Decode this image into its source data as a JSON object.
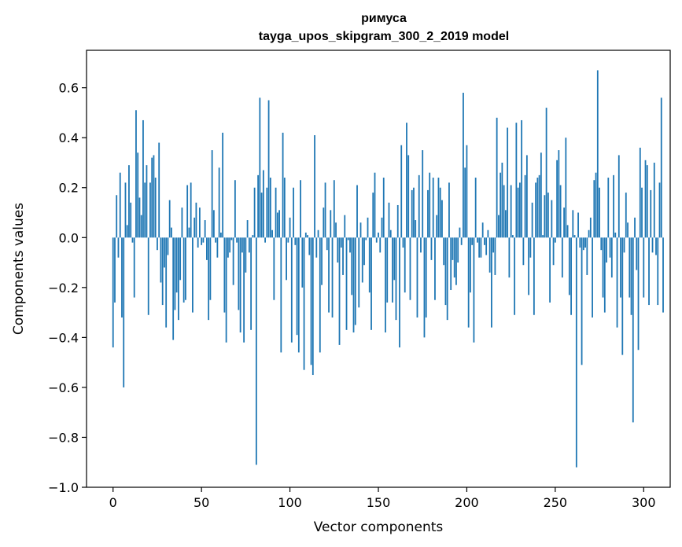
{
  "chart_data": {
    "type": "bar",
    "title": "римуса",
    "subtitle": "tayga_upos_skipgram_300_2_2019 model",
    "xlabel": "Vector components",
    "ylabel": "Components values",
    "xlim": [
      -15,
      315
    ],
    "ylim": [
      -1.0,
      0.75
    ],
    "xticks": [
      0,
      50,
      100,
      150,
      200,
      250,
      300
    ],
    "yticks": [
      -1.0,
      -0.8,
      -0.6,
      -0.4,
      -0.2,
      0.0,
      0.2,
      0.4,
      0.6
    ],
    "ytick_labels": [
      "−1.0",
      "−0.8",
      "−0.6",
      "−0.4",
      "−0.2",
      "0.0",
      "0.2",
      "0.4",
      "0.6"
    ],
    "xtick_labels": [
      "0",
      "50",
      "100",
      "150",
      "200",
      "250",
      "300"
    ],
    "bar_color": "#1f77b4",
    "grid": false,
    "x_start": 0,
    "values": [
      -0.44,
      -0.26,
      0.17,
      -0.08,
      0.26,
      -0.32,
      -0.6,
      0.22,
      0.05,
      0.29,
      0.14,
      -0.02,
      -0.24,
      0.51,
      0.34,
      0.16,
      0.09,
      0.47,
      0.22,
      0.29,
      -0.31,
      0.22,
      0.32,
      0.33,
      0.24,
      -0.05,
      0.38,
      -0.18,
      -0.27,
      -0.12,
      -0.36,
      -0.07,
      0.15,
      0.04,
      -0.41,
      -0.29,
      -0.22,
      -0.33,
      -0.17,
      0.12,
      -0.26,
      -0.25,
      0.21,
      0.04,
      0.22,
      -0.3,
      0.08,
      0.14,
      -0.04,
      0.12,
      -0.03,
      -0.02,
      0.07,
      -0.09,
      -0.33,
      -0.25,
      0.35,
      0.11,
      -0.02,
      -0.08,
      0.28,
      0.02,
      0.42,
      -0.3,
      -0.42,
      -0.08,
      -0.06,
      -0.01,
      -0.19,
      0.23,
      -0.02,
      -0.29,
      -0.38,
      -0.06,
      -0.42,
      -0.14,
      0.07,
      -0.06,
      -0.37,
      0.01,
      0.2,
      -0.91,
      0.25,
      0.56,
      0.18,
      0.27,
      -0.02,
      0.2,
      0.55,
      0.24,
      0.03,
      -0.25,
      0.2,
      0.1,
      0.11,
      -0.46,
      0.42,
      0.24,
      -0.17,
      -0.02,
      0.08,
      -0.42,
      0.2,
      -0.03,
      -0.39,
      -0.46,
      0.23,
      -0.2,
      -0.53,
      0.02,
      0.01,
      -0.07,
      -0.51,
      -0.55,
      0.41,
      -0.08,
      0.03,
      -0.46,
      -0.19,
      0.12,
      0.22,
      -0.05,
      -0.3,
      0.11,
      -0.32,
      0.23,
      0.06,
      -0.1,
      -0.43,
      -0.04,
      -0.15,
      0.09,
      -0.37,
      -0.01,
      -0.06,
      -0.23,
      -0.38,
      -0.35,
      0.21,
      -0.28,
      0.06,
      -0.18,
      -0.11,
      -0.01,
      0.08,
      -0.22,
      -0.37,
      0.18,
      0.26,
      -0.02,
      0.02,
      -0.06,
      0.08,
      0.24,
      -0.38,
      -0.26,
      0.14,
      0.03,
      -0.26,
      -0.17,
      -0.33,
      0.13,
      -0.44,
      0.37,
      -0.04,
      -0.22,
      0.46,
      0.33,
      -0.25,
      0.19,
      0.2,
      0.07,
      -0.32,
      0.25,
      -0.06,
      0.35,
      -0.4,
      -0.32,
      0.19,
      0.26,
      -0.09,
      0.24,
      -0.25,
      0.09,
      0.24,
      0.2,
      0.15,
      -0.11,
      -0.27,
      -0.33,
      0.22,
      -0.21,
      -0.09,
      -0.16,
      -0.19,
      -0.1,
      0.04,
      -0.03,
      0.58,
      0.28,
      0.37,
      -0.36,
      -0.22,
      -0.03,
      -0.42,
      0.24,
      -0.02,
      -0.08,
      -0.08,
      0.06,
      -0.03,
      -0.07,
      0.03,
      -0.14,
      -0.36,
      -0.06,
      -0.15,
      0.48,
      0.09,
      0.26,
      0.3,
      0.21,
      0.11,
      0.44,
      -0.16,
      0.21,
      0.01,
      -0.31,
      0.46,
      0.2,
      0.22,
      0.47,
      -0.11,
      0.25,
      0.33,
      -0.23,
      -0.08,
      0.14,
      -0.31,
      0.22,
      0.24,
      0.25,
      0.34,
      0.01,
      0.17,
      0.52,
      0.18,
      -0.26,
      0.15,
      -0.11,
      -0.02,
      0.31,
      0.35,
      0.21,
      -0.16,
      0.12,
      0.4,
      0.05,
      -0.23,
      -0.31,
      0.11,
      0.01,
      -0.92,
      0.1,
      -0.04,
      -0.51,
      -0.05,
      -0.04,
      -0.15,
      0.03,
      0.08,
      -0.32,
      0.23,
      0.26,
      0.67,
      0.2,
      -0.05,
      -0.24,
      -0.3,
      -0.1,
      0.24,
      -0.08,
      -0.16,
      0.25,
      0.02,
      -0.36,
      0.33,
      -0.24,
      -0.47,
      -0.06,
      0.18,
      0.06,
      -0.24,
      -0.31,
      -0.74,
      0.08,
      -0.13,
      -0.45,
      0.36,
      0.2,
      -0.24,
      0.31,
      0.29,
      -0.27,
      0.19,
      -0.06,
      0.3,
      -0.07,
      -0.27,
      0.22,
      0.56,
      -0.3
    ]
  }
}
